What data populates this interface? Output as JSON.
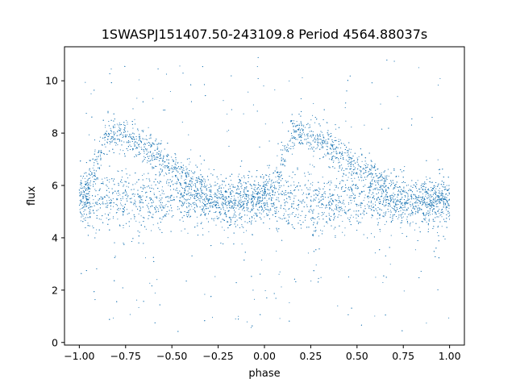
{
  "chart_data": {
    "type": "scatter",
    "title": "1SWASPJ151407.50-243109.8 Period 4564.88037s",
    "xlabel": "phase",
    "ylabel": "flux",
    "xlim": [
      -1.08,
      1.08
    ],
    "ylim": [
      -0.1,
      11.3
    ],
    "x_ticks": [
      -1.0,
      -0.75,
      -0.5,
      -0.25,
      0.0,
      0.25,
      0.5,
      0.75,
      1.0
    ],
    "x_tick_labels": [
      "−1.00",
      "−0.75",
      "−0.50",
      "−0.25",
      "0.00",
      "0.25",
      "0.50",
      "0.75",
      "1.00"
    ],
    "y_ticks": [
      0,
      2,
      4,
      6,
      8,
      10
    ],
    "y_tick_labels": [
      "0",
      "2",
      "4",
      "6",
      "8",
      "10"
    ],
    "grid": false,
    "legend": "none",
    "marker_color": "#1f77b4",
    "x_range": [
      -1.0,
      1.0
    ],
    "baseline_flux": 5.4,
    "peak_phases": [
      -0.83,
      0.17
    ],
    "peak_flux": 8.0,
    "minimum_flux": 5.0,
    "outlier_flux_range": [
      0.4,
      10.9
    ]
  }
}
